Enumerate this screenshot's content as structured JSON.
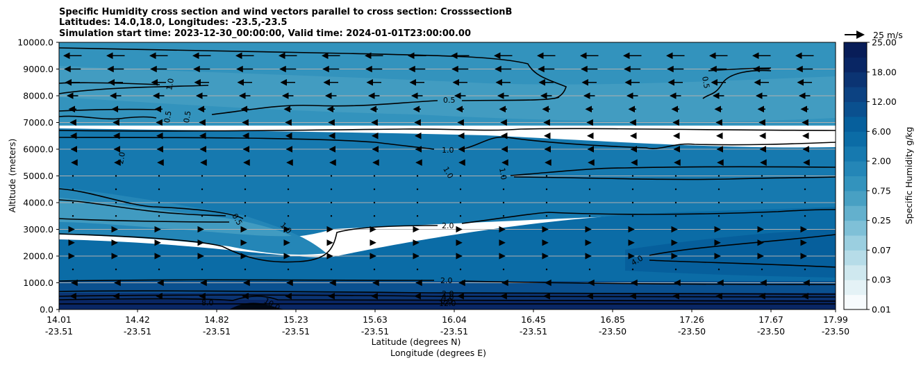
{
  "chart_data": {
    "type": "contour",
    "title_lines": [
      "Specific Humidity cross section and wind vectors parallel to cross section: CrosssectionB",
      "Latitudes: 14.0,18.0, Longitudes: -23.5,-23.5",
      "Simulation start time: 2023-12-30_00:00:00, Valid time: 2024-01-01T23:00:00.00"
    ],
    "ylabel": "Altitude (meters)",
    "xlabel_lat": "Latitude (degrees N)",
    "xlabel_lon": "Longitude (degrees E)",
    "ylim": [
      0,
      10000
    ],
    "y_ticks": [
      "0.0",
      "1000.0",
      "2000.0",
      "3000.0",
      "4000.0",
      "5000.0",
      "6000.0",
      "7000.0",
      "8000.0",
      "9000.0",
      "10000.0"
    ],
    "x_ticks": [
      {
        "lat": "14.01",
        "lon": "-23.51"
      },
      {
        "lat": "14.42",
        "lon": "-23.51"
      },
      {
        "lat": "14.82",
        "lon": "-23.51"
      },
      {
        "lat": "15.23",
        "lon": "-23.51"
      },
      {
        "lat": "15.63",
        "lon": "-23.51"
      },
      {
        "lat": "16.04",
        "lon": "-23.51"
      },
      {
        "lat": "16.45",
        "lon": "-23.51"
      },
      {
        "lat": "16.85",
        "lon": "-23.50"
      },
      {
        "lat": "17.26",
        "lon": "-23.50"
      },
      {
        "lat": "17.67",
        "lon": "-23.50"
      },
      {
        "lat": "17.99",
        "lon": "-23.50"
      }
    ],
    "grid": "horizontal",
    "colorbar": {
      "label": "Specific Humidity g/kg",
      "tick_labels": [
        "0.01",
        "0.03",
        "0.07",
        "0.25",
        "0.75",
        "2.00",
        "6.00",
        "12.00",
        "18.00",
        "25.00"
      ],
      "colors": [
        "#f7fbfd",
        "#e4f2f6",
        "#cfe8ef",
        "#b6dce8",
        "#9bcfe0",
        "#7fc0d7",
        "#63b0cd",
        "#48a0c3",
        "#3393bd",
        "#2486b7",
        "#1679af",
        "#0b6ca6",
        "#065f9c",
        "#0a508f",
        "#0c4282",
        "#0b3473",
        "#092664",
        "#081d58"
      ]
    },
    "wind_key": {
      "label": "25 m/s",
      "speed": 25
    },
    "contour_labels": [
      "0.5",
      "0.5",
      "0.5",
      "1.0",
      "1.0",
      "1.0",
      "1.0",
      "1.0",
      "0.5",
      "0.5",
      "2.0",
      "2.0",
      "2.0",
      "4.0",
      "2.0",
      "4.0",
      "6.0",
      "8.0",
      "10.0",
      "12.0",
      "6.0",
      "10.0"
    ],
    "fill_levels": [
      {
        "y_top": 10000,
        "value": 0.5
      },
      {
        "y_top": 7000,
        "value": 0.75
      },
      {
        "y_top": 6500,
        "value": 1.0
      },
      {
        "y_top": 5000,
        "value": 1.5
      },
      {
        "y_top": 3000,
        "value": 2.5
      },
      {
        "y_top": 1000,
        "value": 3.0
      },
      {
        "y_top": 500,
        "value": 8.0
      },
      {
        "y_top": 200,
        "value": 12.0
      }
    ],
    "wind_rows": [
      {
        "alt": 9500,
        "u": -20
      },
      {
        "alt": 9000,
        "u": -18
      },
      {
        "alt": 8500,
        "u": -16
      },
      {
        "alt": 8000,
        "u": -12
      },
      {
        "alt": 7500,
        "u": -8
      },
      {
        "alt": 7000,
        "u": -5
      },
      {
        "alt": 6500,
        "u": -4
      },
      {
        "alt": 6000,
        "u": -3
      },
      {
        "alt": 5500,
        "u": -2
      },
      {
        "alt": 5000,
        "u": -1
      },
      {
        "alt": 4500,
        "u": 0
      },
      {
        "alt": 4000,
        "u": 0
      },
      {
        "alt": 3500,
        "u": 1
      },
      {
        "alt": 3000,
        "u": 2
      },
      {
        "alt": 2500,
        "u": 2
      },
      {
        "alt": 2000,
        "u": 2
      },
      {
        "alt": 1500,
        "u": 1
      },
      {
        "alt": 1000,
        "u": -2
      },
      {
        "alt": 500,
        "u": -5
      }
    ]
  }
}
